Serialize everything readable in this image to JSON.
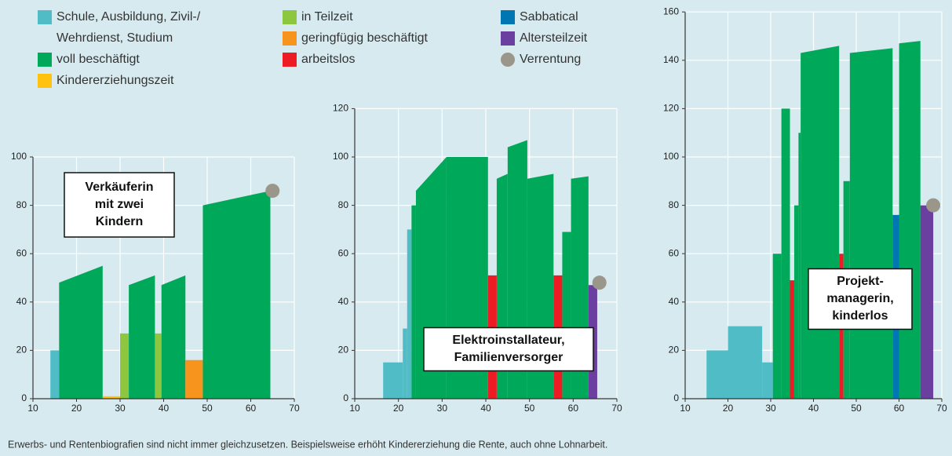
{
  "legend": [
    {
      "lines": [
        "Schule, Ausbildung, Zivil-/",
        "Wehrdienst, Studium"
      ],
      "color": "#4fbcc6",
      "marker": "square"
    },
    {
      "lines": [
        "voll beschäftigt"
      ],
      "color": "#00a85a",
      "marker": "square"
    },
    {
      "lines": [
        "Kindererziehungszeit"
      ],
      "color": "#ffc20e",
      "marker": "square"
    },
    {
      "lines": [
        "in Teilzeit"
      ],
      "color": "#8dc63f",
      "marker": "square"
    },
    {
      "lines": [
        "geringfügig beschäftigt"
      ],
      "color": "#f7941d",
      "marker": "square"
    },
    {
      "lines": [
        "arbeitslos"
      ],
      "color": "#ed1c24",
      "marker": "square"
    },
    {
      "lines": [
        "Sabbatical"
      ],
      "color": "#0077b3",
      "marker": "square"
    },
    {
      "lines": [
        "Altersteilzeit"
      ],
      "color": "#6b3fa0",
      "marker": "square"
    },
    {
      "lines": [
        "Verrentung"
      ],
      "color": "#9b968a",
      "marker": "circle"
    }
  ],
  "chart_data": [
    {
      "type": "segments",
      "annotation": [
        "Verkäuferin",
        "mit zwei",
        "Kindern"
      ],
      "xlim": [
        10,
        70
      ],
      "xticks": [
        10,
        20,
        30,
        40,
        50,
        60,
        70
      ],
      "ylim": [
        0,
        100
      ],
      "yticks": [
        0,
        20,
        40,
        60,
        80,
        100
      ],
      "grid": true,
      "segments": [
        {
          "x": [
            14,
            16
          ],
          "y": [
            20,
            20
          ],
          "color": "#4fbcc6"
        },
        {
          "x": [
            16,
            26
          ],
          "y": [
            48,
            55
          ],
          "color": "#00a85a"
        },
        {
          "x": [
            26,
            30
          ],
          "y": [
            1,
            1
          ],
          "color": "#ffc20e"
        },
        {
          "x": [
            30,
            32
          ],
          "y": [
            27,
            27
          ],
          "color": "#8dc63f"
        },
        {
          "x": [
            32,
            38
          ],
          "y": [
            47,
            51
          ],
          "color": "#00a85a"
        },
        {
          "x": [
            38,
            39.5
          ],
          "y": [
            27,
            27
          ],
          "color": "#8dc63f"
        },
        {
          "x": [
            39.5,
            45
          ],
          "y": [
            47,
            51
          ],
          "color": "#00a85a"
        },
        {
          "x": [
            45,
            49
          ],
          "y": [
            16,
            16
          ],
          "color": "#f7941d"
        },
        {
          "x": [
            49,
            64.5
          ],
          "y": [
            80,
            86
          ],
          "color": "#00a85a"
        }
      ],
      "retirement": {
        "x": 65,
        "y": 86,
        "color": "#9b968a"
      }
    },
    {
      "type": "segments",
      "annotation": [
        "Elektroinstallateur,",
        "Familienversorger"
      ],
      "xlim": [
        10,
        70
      ],
      "xticks": [
        10,
        20,
        30,
        40,
        50,
        60,
        70
      ],
      "ylim": [
        0,
        120
      ],
      "yticks": [
        0,
        20,
        40,
        60,
        80,
        100,
        120
      ],
      "grid": true,
      "segments": [
        {
          "x": [
            16.5,
            21
          ],
          "y": [
            15,
            15
          ],
          "color": "#4fbcc6"
        },
        {
          "x": [
            21,
            22
          ],
          "y": [
            29,
            29
          ],
          "color": "#4fbcc6"
        },
        {
          "x": [
            22,
            23
          ],
          "y": [
            70,
            70
          ],
          "color": "#4fbcc6"
        },
        {
          "x": [
            23,
            24
          ],
          "y": [
            80,
            80
          ],
          "color": "#00a85a"
        },
        {
          "x": [
            24,
            31
          ],
          "y": [
            86,
            100
          ],
          "color": "#00a85a"
        },
        {
          "x": [
            31,
            40.5
          ],
          "y": [
            100,
            100
          ],
          "color": "#00a85a"
        },
        {
          "x": [
            40.5,
            42.5
          ],
          "y": [
            51,
            51
          ],
          "color": "#ed1c24"
        },
        {
          "x": [
            42.5,
            45
          ],
          "y": [
            91,
            93
          ],
          "color": "#00a85a"
        },
        {
          "x": [
            45,
            49.5
          ],
          "y": [
            104,
            107
          ],
          "color": "#00a85a"
        },
        {
          "x": [
            49.5,
            55.5
          ],
          "y": [
            91,
            93
          ],
          "color": "#00a85a"
        },
        {
          "x": [
            55.5,
            57.5
          ],
          "y": [
            51,
            51
          ],
          "color": "#ed1c24"
        },
        {
          "x": [
            57.5,
            59.5
          ],
          "y": [
            69,
            69
          ],
          "color": "#00a85a"
        },
        {
          "x": [
            59.5,
            63.5
          ],
          "y": [
            91,
            92
          ],
          "color": "#00a85a"
        },
        {
          "x": [
            63.5,
            65.5
          ],
          "y": [
            47,
            47
          ],
          "color": "#6b3fa0"
        }
      ],
      "retirement": {
        "x": 66,
        "y": 48,
        "color": "#9b968a"
      }
    },
    {
      "type": "segments",
      "annotation": [
        "Projekt-",
        "managerin,",
        "kinderlos"
      ],
      "xlim": [
        10,
        70
      ],
      "xticks": [
        10,
        20,
        30,
        40,
        50,
        60,
        70
      ],
      "ylim": [
        0,
        160
      ],
      "yticks": [
        0,
        20,
        40,
        60,
        80,
        100,
        120,
        140,
        160
      ],
      "grid": true,
      "segments": [
        {
          "x": [
            15,
            20
          ],
          "y": [
            20,
            20
          ],
          "color": "#4fbcc6"
        },
        {
          "x": [
            20,
            28
          ],
          "y": [
            30,
            30
          ],
          "color": "#4fbcc6"
        },
        {
          "x": [
            28,
            30.5
          ],
          "y": [
            15,
            15
          ],
          "color": "#4fbcc6"
        },
        {
          "x": [
            30.5,
            32.5
          ],
          "y": [
            60,
            60
          ],
          "color": "#00a85a"
        },
        {
          "x": [
            32.5,
            34.5
          ],
          "y": [
            120,
            120
          ],
          "color": "#00a85a"
        },
        {
          "x": [
            34.5,
            35.5
          ],
          "y": [
            49,
            49
          ],
          "color": "#ed1c24"
        },
        {
          "x": [
            35.5,
            36.5
          ],
          "y": [
            80,
            80
          ],
          "color": "#00a85a"
        },
        {
          "x": [
            36.5,
            37
          ],
          "y": [
            110,
            110
          ],
          "color": "#00a85a"
        },
        {
          "x": [
            37,
            46
          ],
          "y": [
            143,
            146
          ],
          "color": "#00a85a"
        },
        {
          "x": [
            46,
            47
          ],
          "y": [
            60,
            60
          ],
          "color": "#ed1c24"
        },
        {
          "x": [
            47,
            48.5
          ],
          "y": [
            90,
            90
          ],
          "color": "#00a85a"
        },
        {
          "x": [
            48.5,
            58.5
          ],
          "y": [
            143,
            145
          ],
          "color": "#00a85a"
        },
        {
          "x": [
            58.5,
            60
          ],
          "y": [
            76,
            76
          ],
          "color": "#0077b3"
        },
        {
          "x": [
            60,
            65
          ],
          "y": [
            147,
            148
          ],
          "color": "#00a85a"
        },
        {
          "x": [
            65,
            68
          ],
          "y": [
            80,
            80
          ],
          "color": "#6b3fa0"
        }
      ],
      "retirement": {
        "x": 68,
        "y": 80,
        "color": "#9b968a"
      }
    }
  ],
  "footnote": "Erwerbs- und Rentenbiografien sind nicht immer gleichzusetzen. Beispielsweise erhöht Kindererziehung die Rente, auch ohne Lohnarbeit."
}
